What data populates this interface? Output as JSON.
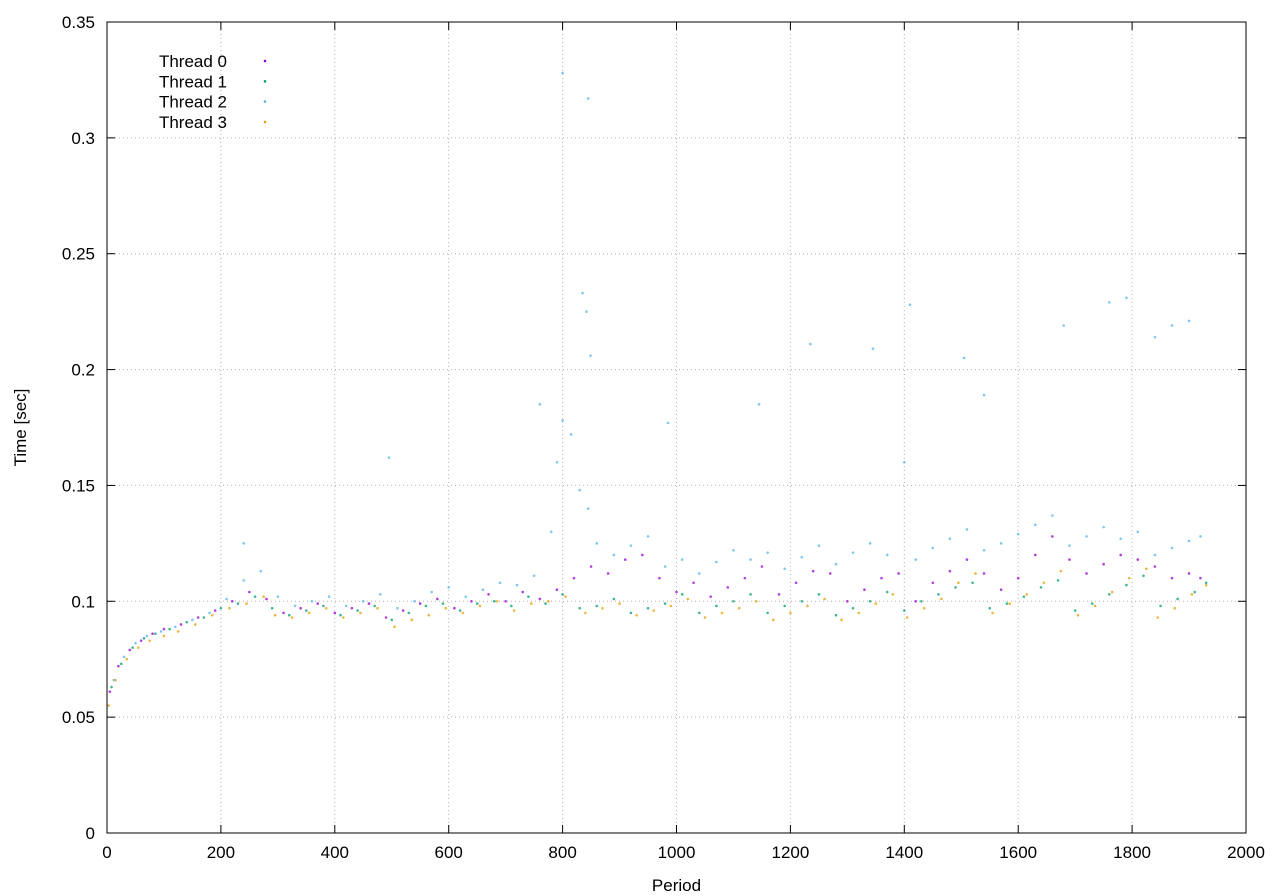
{
  "chart_data": {
    "type": "scatter",
    "title": "",
    "xlabel": "Period",
    "ylabel": "Time [sec]",
    "xlim": [
      0,
      2000
    ],
    "ylim": [
      0,
      0.35
    ],
    "x_ticks": [
      0,
      200,
      400,
      600,
      800,
      1000,
      1200,
      1400,
      1600,
      1800,
      2000
    ],
    "y_ticks": [
      0,
      0.05,
      0.1,
      0.15,
      0.2,
      0.25,
      0.3,
      0.35
    ],
    "x_tick_labels": [
      "0",
      "200",
      "400",
      "600",
      "800",
      "1000",
      "1200",
      "1400",
      "1600",
      "1800",
      "2000"
    ],
    "y_tick_labels": [
      "0",
      "0.05",
      "0.1",
      "0.15",
      "0.2",
      "0.25",
      "0.3",
      "0.35"
    ],
    "grid": true,
    "legend_position": "top-left",
    "series": [
      {
        "name": "Thread 0",
        "color": "#9400d3",
        "points": [
          [
            5,
            0.061
          ],
          [
            20,
            0.072
          ],
          [
            40,
            0.079
          ],
          [
            60,
            0.083
          ],
          [
            80,
            0.086
          ],
          [
            100,
            0.088
          ],
          [
            130,
            0.09
          ],
          [
            160,
            0.093
          ],
          [
            190,
            0.096
          ],
          [
            220,
            0.1
          ],
          [
            250,
            0.104
          ],
          [
            280,
            0.101
          ],
          [
            310,
            0.095
          ],
          [
            340,
            0.097
          ],
          [
            370,
            0.099
          ],
          [
            400,
            0.095
          ],
          [
            430,
            0.097
          ],
          [
            460,
            0.099
          ],
          [
            490,
            0.093
          ],
          [
            520,
            0.096
          ],
          [
            550,
            0.099
          ],
          [
            580,
            0.101
          ],
          [
            610,
            0.097
          ],
          [
            640,
            0.1
          ],
          [
            670,
            0.103
          ],
          [
            700,
            0.1
          ],
          [
            730,
            0.104
          ],
          [
            760,
            0.101
          ],
          [
            790,
            0.105
          ],
          [
            820,
            0.11
          ],
          [
            850,
            0.115
          ],
          [
            880,
            0.112
          ],
          [
            910,
            0.118
          ],
          [
            940,
            0.12
          ],
          [
            970,
            0.11
          ],
          [
            1000,
            0.104
          ],
          [
            1030,
            0.108
          ],
          [
            1060,
            0.102
          ],
          [
            1090,
            0.106
          ],
          [
            1120,
            0.11
          ],
          [
            1150,
            0.115
          ],
          [
            1180,
            0.103
          ],
          [
            1210,
            0.108
          ],
          [
            1240,
            0.113
          ],
          [
            1270,
            0.112
          ],
          [
            1300,
            0.1
          ],
          [
            1330,
            0.105
          ],
          [
            1360,
            0.11
          ],
          [
            1390,
            0.112
          ],
          [
            1420,
            0.1
          ],
          [
            1450,
            0.108
          ],
          [
            1480,
            0.113
          ],
          [
            1510,
            0.118
          ],
          [
            1540,
            0.112
          ],
          [
            1570,
            0.105
          ],
          [
            1600,
            0.11
          ],
          [
            1630,
            0.12
          ],
          [
            1660,
            0.128
          ],
          [
            1690,
            0.118
          ],
          [
            1720,
            0.112
          ],
          [
            1750,
            0.116
          ],
          [
            1780,
            0.12
          ],
          [
            1810,
            0.118
          ],
          [
            1840,
            0.115
          ],
          [
            1870,
            0.11
          ],
          [
            1900,
            0.112
          ],
          [
            1920,
            0.11
          ]
        ]
      },
      {
        "name": "Thread 1",
        "color": "#009e73",
        "points": [
          [
            8,
            0.063
          ],
          [
            25,
            0.073
          ],
          [
            45,
            0.08
          ],
          [
            65,
            0.084
          ],
          [
            85,
            0.086
          ],
          [
            110,
            0.088
          ],
          [
            140,
            0.091
          ],
          [
            170,
            0.093
          ],
          [
            200,
            0.097
          ],
          [
            230,
            0.099
          ],
          [
            260,
            0.102
          ],
          [
            290,
            0.097
          ],
          [
            320,
            0.094
          ],
          [
            350,
            0.096
          ],
          [
            380,
            0.098
          ],
          [
            410,
            0.094
          ],
          [
            440,
            0.096
          ],
          [
            470,
            0.098
          ],
          [
            500,
            0.092
          ],
          [
            530,
            0.095
          ],
          [
            560,
            0.098
          ],
          [
            590,
            0.099
          ],
          [
            620,
            0.096
          ],
          [
            650,
            0.099
          ],
          [
            680,
            0.1
          ],
          [
            710,
            0.098
          ],
          [
            740,
            0.102
          ],
          [
            770,
            0.099
          ],
          [
            800,
            0.103
          ],
          [
            830,
            0.097
          ],
          [
            860,
            0.098
          ],
          [
            890,
            0.101
          ],
          [
            920,
            0.095
          ],
          [
            950,
            0.097
          ],
          [
            980,
            0.099
          ],
          [
            1010,
            0.103
          ],
          [
            1040,
            0.095
          ],
          [
            1070,
            0.098
          ],
          [
            1100,
            0.1
          ],
          [
            1130,
            0.103
          ],
          [
            1160,
            0.095
          ],
          [
            1190,
            0.098
          ],
          [
            1220,
            0.1
          ],
          [
            1250,
            0.103
          ],
          [
            1280,
            0.094
          ],
          [
            1310,
            0.097
          ],
          [
            1340,
            0.1
          ],
          [
            1370,
            0.104
          ],
          [
            1400,
            0.096
          ],
          [
            1430,
            0.1
          ],
          [
            1460,
            0.103
          ],
          [
            1490,
            0.106
          ],
          [
            1520,
            0.108
          ],
          [
            1550,
            0.097
          ],
          [
            1580,
            0.099
          ],
          [
            1610,
            0.102
          ],
          [
            1640,
            0.106
          ],
          [
            1670,
            0.109
          ],
          [
            1700,
            0.096
          ],
          [
            1730,
            0.099
          ],
          [
            1760,
            0.103
          ],
          [
            1790,
            0.107
          ],
          [
            1820,
            0.111
          ],
          [
            1850,
            0.098
          ],
          [
            1880,
            0.101
          ],
          [
            1910,
            0.104
          ],
          [
            1930,
            0.108
          ]
        ]
      },
      {
        "name": "Thread 2",
        "color": "#56b4e9",
        "points": [
          [
            12,
            0.066
          ],
          [
            30,
            0.076
          ],
          [
            50,
            0.082
          ],
          [
            70,
            0.085
          ],
          [
            95,
            0.087
          ],
          [
            120,
            0.089
          ],
          [
            150,
            0.092
          ],
          [
            180,
            0.095
          ],
          [
            210,
            0.101
          ],
          [
            240,
            0.109
          ],
          [
            270,
            0.113
          ],
          [
            300,
            0.102
          ],
          [
            330,
            0.098
          ],
          [
            360,
            0.1
          ],
          [
            390,
            0.102
          ],
          [
            420,
            0.098
          ],
          [
            450,
            0.1
          ],
          [
            480,
            0.103
          ],
          [
            510,
            0.097
          ],
          [
            540,
            0.1
          ],
          [
            570,
            0.104
          ],
          [
            600,
            0.106
          ],
          [
            630,
            0.102
          ],
          [
            660,
            0.105
          ],
          [
            690,
            0.108
          ],
          [
            720,
            0.107
          ],
          [
            750,
            0.111
          ],
          [
            780,
            0.13
          ],
          [
            790,
            0.16
          ],
          [
            800,
            0.178
          ],
          [
            815,
            0.172
          ],
          [
            830,
            0.148
          ],
          [
            845,
            0.14
          ],
          [
            860,
            0.125
          ],
          [
            890,
            0.12
          ],
          [
            920,
            0.124
          ],
          [
            950,
            0.128
          ],
          [
            980,
            0.115
          ],
          [
            1010,
            0.118
          ],
          [
            1040,
            0.112
          ],
          [
            1070,
            0.117
          ],
          [
            1100,
            0.122
          ],
          [
            1130,
            0.118
          ],
          [
            1160,
            0.121
          ],
          [
            1190,
            0.114
          ],
          [
            1220,
            0.119
          ],
          [
            1250,
            0.124
          ],
          [
            1280,
            0.116
          ],
          [
            1310,
            0.121
          ],
          [
            1340,
            0.125
          ],
          [
            1370,
            0.12
          ],
          [
            1400,
            0.16
          ],
          [
            1420,
            0.118
          ],
          [
            1450,
            0.123
          ],
          [
            1480,
            0.127
          ],
          [
            1510,
            0.131
          ],
          [
            1540,
            0.122
          ],
          [
            1570,
            0.125
          ],
          [
            1600,
            0.129
          ],
          [
            1630,
            0.133
          ],
          [
            1660,
            0.137
          ],
          [
            1690,
            0.124
          ],
          [
            1720,
            0.128
          ],
          [
            1750,
            0.132
          ],
          [
            1780,
            0.127
          ],
          [
            1810,
            0.13
          ],
          [
            1840,
            0.12
          ],
          [
            1870,
            0.123
          ],
          [
            1900,
            0.126
          ],
          [
            1920,
            0.128
          ],
          [
            240,
            0.125
          ],
          [
            495,
            0.162
          ],
          [
            760,
            0.185
          ],
          [
            835,
            0.233
          ],
          [
            842,
            0.225
          ],
          [
            849,
            0.206
          ],
          [
            800,
            0.328
          ],
          [
            845,
            0.317
          ],
          [
            1145,
            0.185
          ],
          [
            1235,
            0.211
          ],
          [
            1345,
            0.209
          ],
          [
            1410,
            0.228
          ],
          [
            1505,
            0.205
          ],
          [
            1540,
            0.189
          ],
          [
            1680,
            0.219
          ],
          [
            1760,
            0.229
          ],
          [
            1790,
            0.231
          ],
          [
            1870,
            0.219
          ],
          [
            1900,
            0.221
          ],
          [
            1840,
            0.214
          ],
          [
            985,
            0.177
          ]
        ]
      },
      {
        "name": "Thread 3",
        "color": "#e69f00",
        "points": [
          [
            3,
            0.055
          ],
          [
            15,
            0.066
          ],
          [
            35,
            0.075
          ],
          [
            55,
            0.08
          ],
          [
            75,
            0.083
          ],
          [
            100,
            0.085
          ],
          [
            125,
            0.087
          ],
          [
            155,
            0.09
          ],
          [
            185,
            0.094
          ],
          [
            215,
            0.097
          ],
          [
            245,
            0.099
          ],
          [
            275,
            0.102
          ],
          [
            295,
            0.094
          ],
          [
            325,
            0.093
          ],
          [
            355,
            0.095
          ],
          [
            385,
            0.097
          ],
          [
            415,
            0.093
          ],
          [
            445,
            0.095
          ],
          [
            475,
            0.097
          ],
          [
            505,
            0.089
          ],
          [
            535,
            0.092
          ],
          [
            565,
            0.094
          ],
          [
            595,
            0.097
          ],
          [
            625,
            0.095
          ],
          [
            655,
            0.098
          ],
          [
            685,
            0.1
          ],
          [
            715,
            0.096
          ],
          [
            745,
            0.099
          ],
          [
            775,
            0.1
          ],
          [
            805,
            0.102
          ],
          [
            840,
            0.095
          ],
          [
            870,
            0.097
          ],
          [
            900,
            0.099
          ],
          [
            930,
            0.094
          ],
          [
            960,
            0.096
          ],
          [
            990,
            0.098
          ],
          [
            1020,
            0.101
          ],
          [
            1050,
            0.093
          ],
          [
            1080,
            0.095
          ],
          [
            1110,
            0.097
          ],
          [
            1140,
            0.1
          ],
          [
            1170,
            0.092
          ],
          [
            1200,
            0.095
          ],
          [
            1230,
            0.098
          ],
          [
            1260,
            0.101
          ],
          [
            1290,
            0.092
          ],
          [
            1320,
            0.095
          ],
          [
            1350,
            0.099
          ],
          [
            1380,
            0.103
          ],
          [
            1405,
            0.093
          ],
          [
            1435,
            0.097
          ],
          [
            1465,
            0.101
          ],
          [
            1495,
            0.108
          ],
          [
            1525,
            0.112
          ],
          [
            1555,
            0.095
          ],
          [
            1585,
            0.099
          ],
          [
            1615,
            0.103
          ],
          [
            1645,
            0.108
          ],
          [
            1675,
            0.113
          ],
          [
            1705,
            0.094
          ],
          [
            1735,
            0.098
          ],
          [
            1765,
            0.104
          ],
          [
            1795,
            0.11
          ],
          [
            1825,
            0.114
          ],
          [
            1845,
            0.093
          ],
          [
            1875,
            0.097
          ],
          [
            1905,
            0.103
          ],
          [
            1930,
            0.107
          ]
        ]
      }
    ]
  }
}
